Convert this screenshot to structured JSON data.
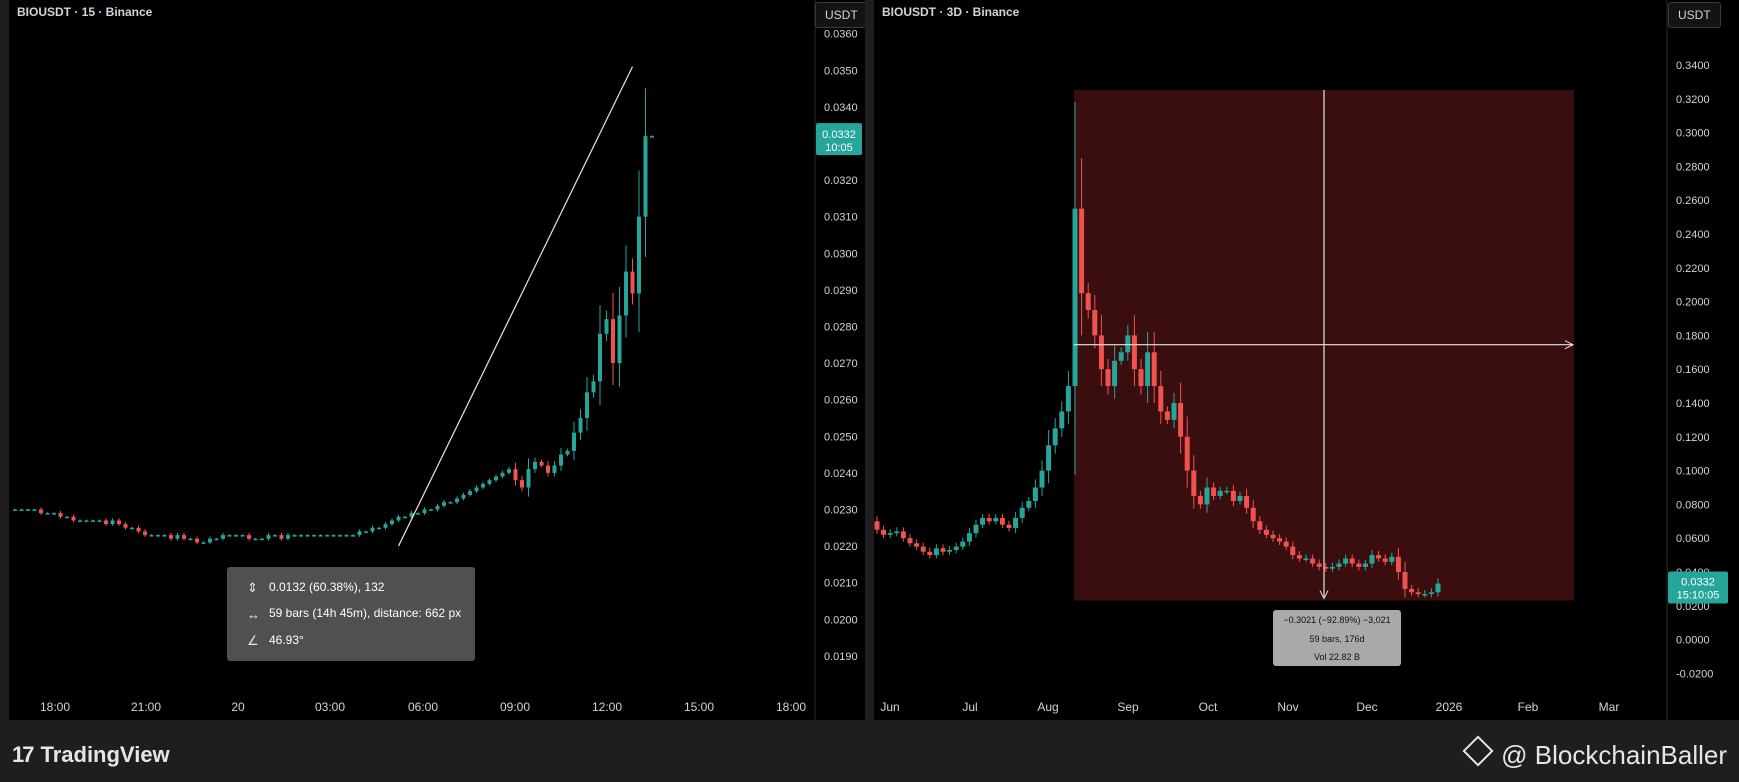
{
  "left_panel": {
    "title": "BIOUSDT · 15 · Binance",
    "currency": "USDT",
    "price_tag": "0.0332",
    "countdown": "10:05",
    "measure": {
      "line1": "0.0132 (60.38%), 132",
      "line2": "59 bars (14h 45m), distance: 662 px",
      "line3": "46.93°"
    }
  },
  "right_panel": {
    "title": "BIOUSDT · 3D · Binance",
    "currency": "USDT",
    "price_tag": "0.0332",
    "countdown": "15:10:05",
    "measure": {
      "line1": "−0.3021 (−92.89%) −3,021",
      "line2": "59 bars, 176d",
      "line3": "Vol 22.82 B"
    }
  },
  "footer": {
    "brand": "TradingView",
    "credit": "@ BlockchainBaller"
  },
  "colors": {
    "up": "#26a69a",
    "down": "#ef5350",
    "background": "#000000",
    "range_fill": "#3a0d0f"
  },
  "chart_data": [
    {
      "type": "candlestick",
      "title": "BIOUSDT · 15 · Binance",
      "ylabel": "USDT",
      "ylim": [
        0.0181,
        0.0361
      ],
      "y_ticks": [
        "0.0360",
        "0.0350",
        "0.0340",
        "0.0330",
        "0.0320",
        "0.0310",
        "0.0300",
        "0.0290",
        "0.0280",
        "0.0270",
        "0.0260",
        "0.0250",
        "0.0240",
        "0.0230",
        "0.0220",
        "0.0210",
        "0.0200",
        "0.0190"
      ],
      "x_ticks": [
        "18:00",
        "21:00",
        "20",
        "03:00",
        "06:00",
        "09:00",
        "12:00",
        "15:00",
        "18:00"
      ],
      "last_price": 0.0332,
      "close_series": [
        0.023,
        0.023,
        0.023,
        0.023,
        0.0229,
        0.0229,
        0.0229,
        0.0228,
        0.0228,
        0.0227,
        0.0227,
        0.0227,
        0.0227,
        0.0227,
        0.0226,
        0.0227,
        0.0226,
        0.0225,
        0.0225,
        0.0224,
        0.0223,
        0.0223,
        0.0223,
        0.0223,
        0.0222,
        0.0223,
        0.0222,
        0.0222,
        0.0221,
        0.0221,
        0.0222,
        0.0222,
        0.0223,
        0.0223,
        0.0223,
        0.0223,
        0.0222,
        0.0222,
        0.0222,
        0.0223,
        0.0223,
        0.0222,
        0.0223,
        0.0223,
        0.0223,
        0.0223,
        0.0223,
        0.0223,
        0.0223,
        0.0223,
        0.0223,
        0.0223,
        0.0223,
        0.0224,
        0.0224,
        0.0225,
        0.0225,
        0.0226,
        0.0227,
        0.0228,
        0.0228,
        0.0229,
        0.0229,
        0.023,
        0.023,
        0.0231,
        0.0232,
        0.0232,
        0.0233,
        0.0234,
        0.0235,
        0.0236,
        0.0237,
        0.0238,
        0.0239,
        0.024,
        0.0241,
        0.0238,
        0.0236,
        0.0241,
        0.0243,
        0.0242,
        0.024,
        0.0242,
        0.0245,
        0.0246,
        0.0251,
        0.0255,
        0.0262,
        0.0265,
        0.0278,
        0.0282,
        0.027,
        0.0283,
        0.0295,
        0.0289,
        0.031,
        0.0332,
        0.0332
      ],
      "trendline": {
        "from": {
          "bar": 59,
          "price": 0.022
        },
        "to": {
          "bar": 95,
          "price": 0.0351
        }
      }
    },
    {
      "type": "candlestick",
      "title": "BIOUSDT · 3D · Binance",
      "ylabel": "USDT",
      "ylim": [
        -0.0364,
        0.3705
      ],
      "y_ticks": [
        "0.3400",
        "0.3200",
        "0.3000",
        "0.2800",
        "0.2600",
        "0.2400",
        "0.2200",
        "0.2000",
        "0.1800",
        "0.1600",
        "0.1400",
        "0.1200",
        "0.1000",
        "0.0800",
        "0.0600",
        "0.0400",
        "0.0200",
        "0.0000",
        "-0.0200"
      ],
      "x_ticks": [
        "Jun",
        "Jul",
        "Aug",
        "Sep",
        "Oct",
        "Nov",
        "Dec",
        "2026",
        "Feb",
        "Mar"
      ],
      "last_price": 0.0332,
      "close_series": [
        0.065,
        0.062,
        0.063,
        0.064,
        0.06,
        0.057,
        0.055,
        0.052,
        0.05,
        0.054,
        0.052,
        0.053,
        0.055,
        0.058,
        0.063,
        0.068,
        0.072,
        0.07,
        0.072,
        0.068,
        0.066,
        0.072,
        0.078,
        0.082,
        0.09,
        0.1,
        0.115,
        0.125,
        0.135,
        0.15,
        0.255,
        0.205,
        0.195,
        0.18,
        0.16,
        0.15,
        0.165,
        0.17,
        0.18,
        0.16,
        0.15,
        0.17,
        0.15,
        0.135,
        0.13,
        0.14,
        0.12,
        0.1,
        0.085,
        0.08,
        0.09,
        0.085,
        0.088,
        0.088,
        0.082,
        0.085,
        0.078,
        0.07,
        0.065,
        0.062,
        0.06,
        0.058,
        0.055,
        0.05,
        0.048,
        0.048,
        0.045,
        0.043,
        0.042,
        0.043,
        0.045,
        0.048,
        0.045,
        0.043,
        0.045,
        0.05,
        0.048,
        0.046,
        0.049,
        0.04,
        0.03,
        0.028,
        0.027,
        0.027,
        0.028,
        0.0332
      ],
      "range_box": {
        "price_top": 0.3252,
        "price_bottom": 0.0231,
        "change": -0.3021,
        "bars": 59,
        "days": 176
      }
    }
  ]
}
